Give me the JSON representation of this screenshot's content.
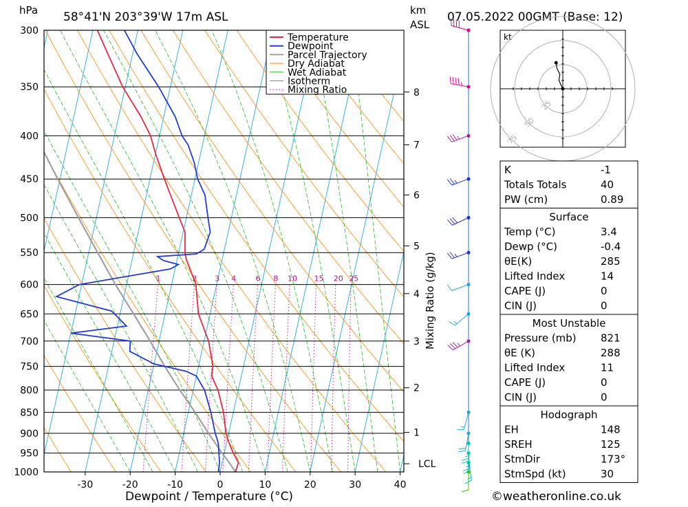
{
  "header": {
    "hpa_unit": "hPa",
    "location": "58°41'N  203°39'W  17m  ASL",
    "km_unit": "km",
    "asl": "ASL",
    "datetime": "07.05.2022  00GMT  (Base: 12)"
  },
  "chart_data": {
    "type": "skew-t",
    "xlabel": "Dewpoint / Temperature (°C)",
    "ylabel": "hPa",
    "mixing_axis_label": "Mixing Ratio (g/kg)",
    "xlim": [
      -40,
      40
    ],
    "ylim": [
      1000,
      300
    ],
    "pressure_levels": [
      300,
      350,
      400,
      450,
      500,
      550,
      600,
      650,
      700,
      750,
      800,
      850,
      900,
      950,
      1000
    ],
    "temp_ticks": [
      -30,
      -20,
      -10,
      0,
      10,
      20,
      30,
      40
    ],
    "km_ticks": [
      {
        "km": "1",
        "p": 898
      },
      {
        "km": "2",
        "p": 795
      },
      {
        "km": "3",
        "p": 700
      },
      {
        "km": "4",
        "p": 615
      },
      {
        "km": "5",
        "p": 540
      },
      {
        "km": "6",
        "p": 470
      },
      {
        "km": "7",
        "p": 410
      },
      {
        "km": "8",
        "p": 355
      }
    ],
    "lcl": {
      "label": "LCL",
      "p": 978
    },
    "mixing_ratio_labels": [
      "1",
      "2",
      "3",
      "4",
      "6",
      "8",
      "10",
      "15",
      "20",
      "25"
    ],
    "legend": [
      "Temperature",
      "Dewpoint",
      "Parcel Trajectory",
      "Dry Adiabat",
      "Wet Adiabat",
      "Isotherm",
      "Mixing Ratio"
    ],
    "series": [
      {
        "name": "Temperature",
        "color": "#e8283c",
        "points": [
          [
            1000,
            3.4
          ],
          [
            975,
            3.6
          ],
          [
            950,
            2.0
          ],
          [
            925,
            0.6
          ],
          [
            900,
            -0.6
          ],
          [
            850,
            -2.2
          ],
          [
            800,
            -4.5
          ],
          [
            770,
            -6.6
          ],
          [
            750,
            -6.8
          ],
          [
            700,
            -9.0
          ],
          [
            650,
            -12.6
          ],
          [
            600,
            -14.6
          ],
          [
            560,
            -18.0
          ],
          [
            550,
            -18.6
          ],
          [
            520,
            -19.6
          ],
          [
            500,
            -21.6
          ],
          [
            450,
            -26.8
          ],
          [
            420,
            -30.0
          ],
          [
            400,
            -32.0
          ],
          [
            380,
            -35.0
          ],
          [
            350,
            -40.6
          ],
          [
            320,
            -45.5
          ],
          [
            300,
            -49.0
          ]
        ]
      },
      {
        "name": "Dewpoint",
        "color": "#1f3ad6",
        "points": [
          [
            1000,
            -0.4
          ],
          [
            975,
            -0.6
          ],
          [
            950,
            -1.2
          ],
          [
            925,
            -1.8
          ],
          [
            900,
            -3.0
          ],
          [
            850,
            -5.0
          ],
          [
            800,
            -7.5
          ],
          [
            770,
            -10.0
          ],
          [
            760,
            -12.5
          ],
          [
            745,
            -20.0
          ],
          [
            720,
            -26.0
          ],
          [
            700,
            -26.4
          ],
          [
            685,
            -40.0
          ],
          [
            672,
            -28.0
          ],
          [
            645,
            -32.0
          ],
          [
            620,
            -45.0
          ],
          [
            600,
            -40.5
          ],
          [
            575,
            -21.0
          ],
          [
            568,
            -19.5
          ],
          [
            562,
            -23.0
          ],
          [
            556,
            -24.5
          ],
          [
            552,
            -16.0
          ],
          [
            545,
            -14.5
          ],
          [
            520,
            -14.0
          ],
          [
            500,
            -15.2
          ],
          [
            470,
            -17.0
          ],
          [
            450,
            -19.4
          ],
          [
            430,
            -21.0
          ],
          [
            410,
            -23.2
          ],
          [
            400,
            -25.0
          ],
          [
            380,
            -27.4
          ],
          [
            350,
            -32.6
          ],
          [
            320,
            -39.0
          ],
          [
            300,
            -43.0
          ]
        ]
      },
      {
        "name": "Parcel Trajectory",
        "color": "#a0a0a0",
        "points": [
          [
            1000,
            3.4
          ],
          [
            978,
            1.8
          ],
          [
            950,
            -0.5
          ],
          [
            900,
            -4.5
          ],
          [
            850,
            -8.5
          ],
          [
            800,
            -13.0
          ],
          [
            750,
            -17.5
          ],
          [
            700,
            -22.0
          ],
          [
            650,
            -27.0
          ],
          [
            600,
            -32.5
          ],
          [
            550,
            -38.0
          ],
          [
            500,
            -44.0
          ],
          [
            450,
            -50.5
          ],
          [
            400,
            -57.5
          ],
          [
            350,
            -65.5
          ],
          [
            300,
            -74.0
          ]
        ]
      }
    ],
    "hodograph_rings": [
      "25",
      "50",
      "75"
    ],
    "hodograph_unit": "kt",
    "hodograph_points": [
      [
        0,
        0
      ],
      [
        -2,
        4
      ],
      [
        -4,
        9
      ],
      [
        -3,
        15
      ],
      [
        -6,
        21
      ],
      [
        -7,
        27
      ]
    ],
    "wind_barbs": [
      {
        "p": 1000,
        "color": "#33cc00",
        "dir": 180,
        "speed": 10
      },
      {
        "p": 975,
        "color": "#00c8a0",
        "dir": 170,
        "speed": 15
      },
      {
        "p": 950,
        "color": "#00c8a0",
        "dir": 175,
        "speed": 25
      },
      {
        "p": 925,
        "color": "#00c8a0",
        "dir": 180,
        "speed": 25
      },
      {
        "p": 900,
        "color": "#22aacc",
        "dir": 190,
        "speed": 20
      },
      {
        "p": 850,
        "color": "#22aacc",
        "dir": 195,
        "speed": 15
      },
      {
        "p": 700,
        "color": "#aa2299",
        "dir": 240,
        "speed": 35
      },
      {
        "p": 650,
        "color": "#22aacc",
        "dir": 230,
        "speed": 15
      },
      {
        "p": 600,
        "color": "#22aacc",
        "dir": 250,
        "speed": 10
      },
      {
        "p": 550,
        "color": "#2233cc",
        "dir": 250,
        "speed": 25
      },
      {
        "p": 500,
        "color": "#2233cc",
        "dir": 245,
        "speed": 30
      },
      {
        "p": 450,
        "color": "#2233cc",
        "dir": 250,
        "speed": 25
      },
      {
        "p": 400,
        "color": "#aa2299",
        "dir": 250,
        "speed": 35
      },
      {
        "p": 350,
        "color": "#dd0099",
        "dir": 280,
        "speed": 45
      },
      {
        "p": 300,
        "color": "#dd0099",
        "dir": 285,
        "speed": 40
      }
    ]
  },
  "indices": {
    "rows": [
      {
        "label": "K",
        "value": "-1"
      },
      {
        "label": "Totals Totals",
        "value": "40"
      },
      {
        "label": "PW (cm)",
        "value": "0.89"
      }
    ]
  },
  "surface": {
    "title": "Surface",
    "rows": [
      {
        "label": "Temp (°C)",
        "value": "3.4"
      },
      {
        "label": "Dewp (°C)",
        "value": "-0.4"
      },
      {
        "label": "θE(K)",
        "value": "285"
      },
      {
        "label": "Lifted Index",
        "value": "14"
      },
      {
        "label": "CAPE (J)",
        "value": "0"
      },
      {
        "label": "CIN (J)",
        "value": "0"
      }
    ]
  },
  "most_unstable": {
    "title": "Most Unstable",
    "rows": [
      {
        "label": "Pressure (mb)",
        "value": "821"
      },
      {
        "label": "θE (K)",
        "value": "288"
      },
      {
        "label": "Lifted Index",
        "value": "11"
      },
      {
        "label": "CAPE (J)",
        "value": "0"
      },
      {
        "label": "CIN (J)",
        "value": "0"
      }
    ]
  },
  "hodograph_table": {
    "title": "Hodograph",
    "rows": [
      {
        "label": "EH",
        "value": "148"
      },
      {
        "label": "SREH",
        "value": "125"
      },
      {
        "label": "StmDir",
        "value": "173°"
      },
      {
        "label": "StmSpd (kt)",
        "value": "30"
      }
    ]
  },
  "footer": {
    "copyright": "©weatheronline.co.uk"
  }
}
